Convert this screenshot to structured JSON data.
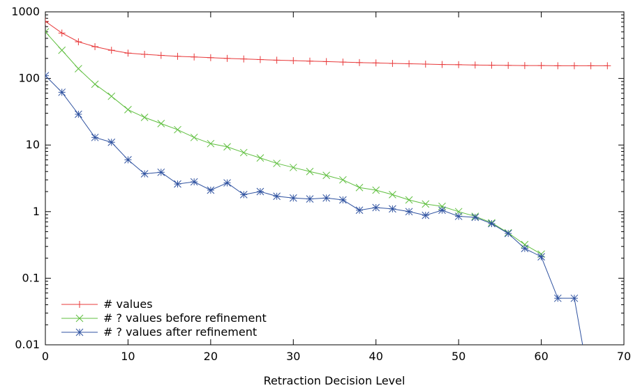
{
  "chart_data": {
    "type": "line",
    "xlabel": "Retraction Decision Level",
    "ylabel": "",
    "xlim": [
      0,
      70
    ],
    "ylim": [
      0.01,
      1000
    ],
    "yscale": "log",
    "grid": false,
    "legend_position": "bottom-left",
    "x_ticks": [
      "0",
      "10",
      "20",
      "30",
      "40",
      "50",
      "60",
      "70"
    ],
    "y_ticks": [
      "0.01",
      "0.1",
      "1",
      "10",
      "100",
      "1000"
    ],
    "series": [
      {
        "name": "# values",
        "color": "#e8393a",
        "marker": "plus",
        "x": [
          0,
          2,
          4,
          6,
          8,
          10,
          12,
          14,
          16,
          18,
          20,
          22,
          24,
          26,
          28,
          30,
          32,
          34,
          36,
          38,
          40,
          42,
          44,
          46,
          48,
          50,
          52,
          54,
          56,
          58,
          60,
          62,
          64,
          66,
          68
        ],
        "y": [
          720,
          480,
          355,
          300,
          265,
          240,
          230,
          222,
          215,
          210,
          205,
          200,
          196,
          192,
          188,
          185,
          182,
          179,
          176,
          173,
          171,
          168,
          166,
          164,
          162,
          161,
          159,
          158,
          157,
          156,
          156,
          155,
          155,
          155,
          155
        ]
      },
      {
        "name": "# ? values before refinement",
        "color": "#5fbf3f",
        "marker": "cross",
        "x": [
          0,
          2,
          4,
          6,
          8,
          10,
          12,
          14,
          16,
          18,
          20,
          22,
          24,
          26,
          28,
          30,
          32,
          34,
          36,
          38,
          40,
          42,
          44,
          46,
          48,
          50,
          52,
          54,
          56,
          58,
          60
        ],
        "y": [
          500,
          265,
          140,
          82,
          54,
          34,
          26,
          21,
          17,
          13,
          10.5,
          9.4,
          7.7,
          6.4,
          5.3,
          4.6,
          4.0,
          3.5,
          3.0,
          2.3,
          2.1,
          1.8,
          1.5,
          1.3,
          1.2,
          1.0,
          0.85,
          0.68,
          0.48,
          0.32,
          0.23
        ]
      },
      {
        "name": "# ? values after refinement",
        "color": "#2f52a0",
        "marker": "star",
        "x": [
          0,
          2,
          4,
          6,
          8,
          10,
          12,
          14,
          16,
          18,
          20,
          22,
          24,
          26,
          28,
          30,
          32,
          34,
          36,
          38,
          40,
          42,
          44,
          46,
          48,
          50,
          52,
          54,
          56,
          58,
          60,
          62,
          64,
          65
        ],
        "y": [
          110,
          62,
          29,
          13,
          11,
          6,
          3.7,
          3.9,
          2.6,
          2.8,
          2.1,
          2.7,
          1.8,
          2.0,
          1.7,
          1.6,
          1.55,
          1.6,
          1.5,
          1.05,
          1.15,
          1.1,
          1.0,
          0.88,
          1.05,
          0.85,
          0.82,
          0.66,
          0.47,
          0.28,
          0.21,
          0.05,
          0.05,
          0.01
        ]
      }
    ]
  }
}
